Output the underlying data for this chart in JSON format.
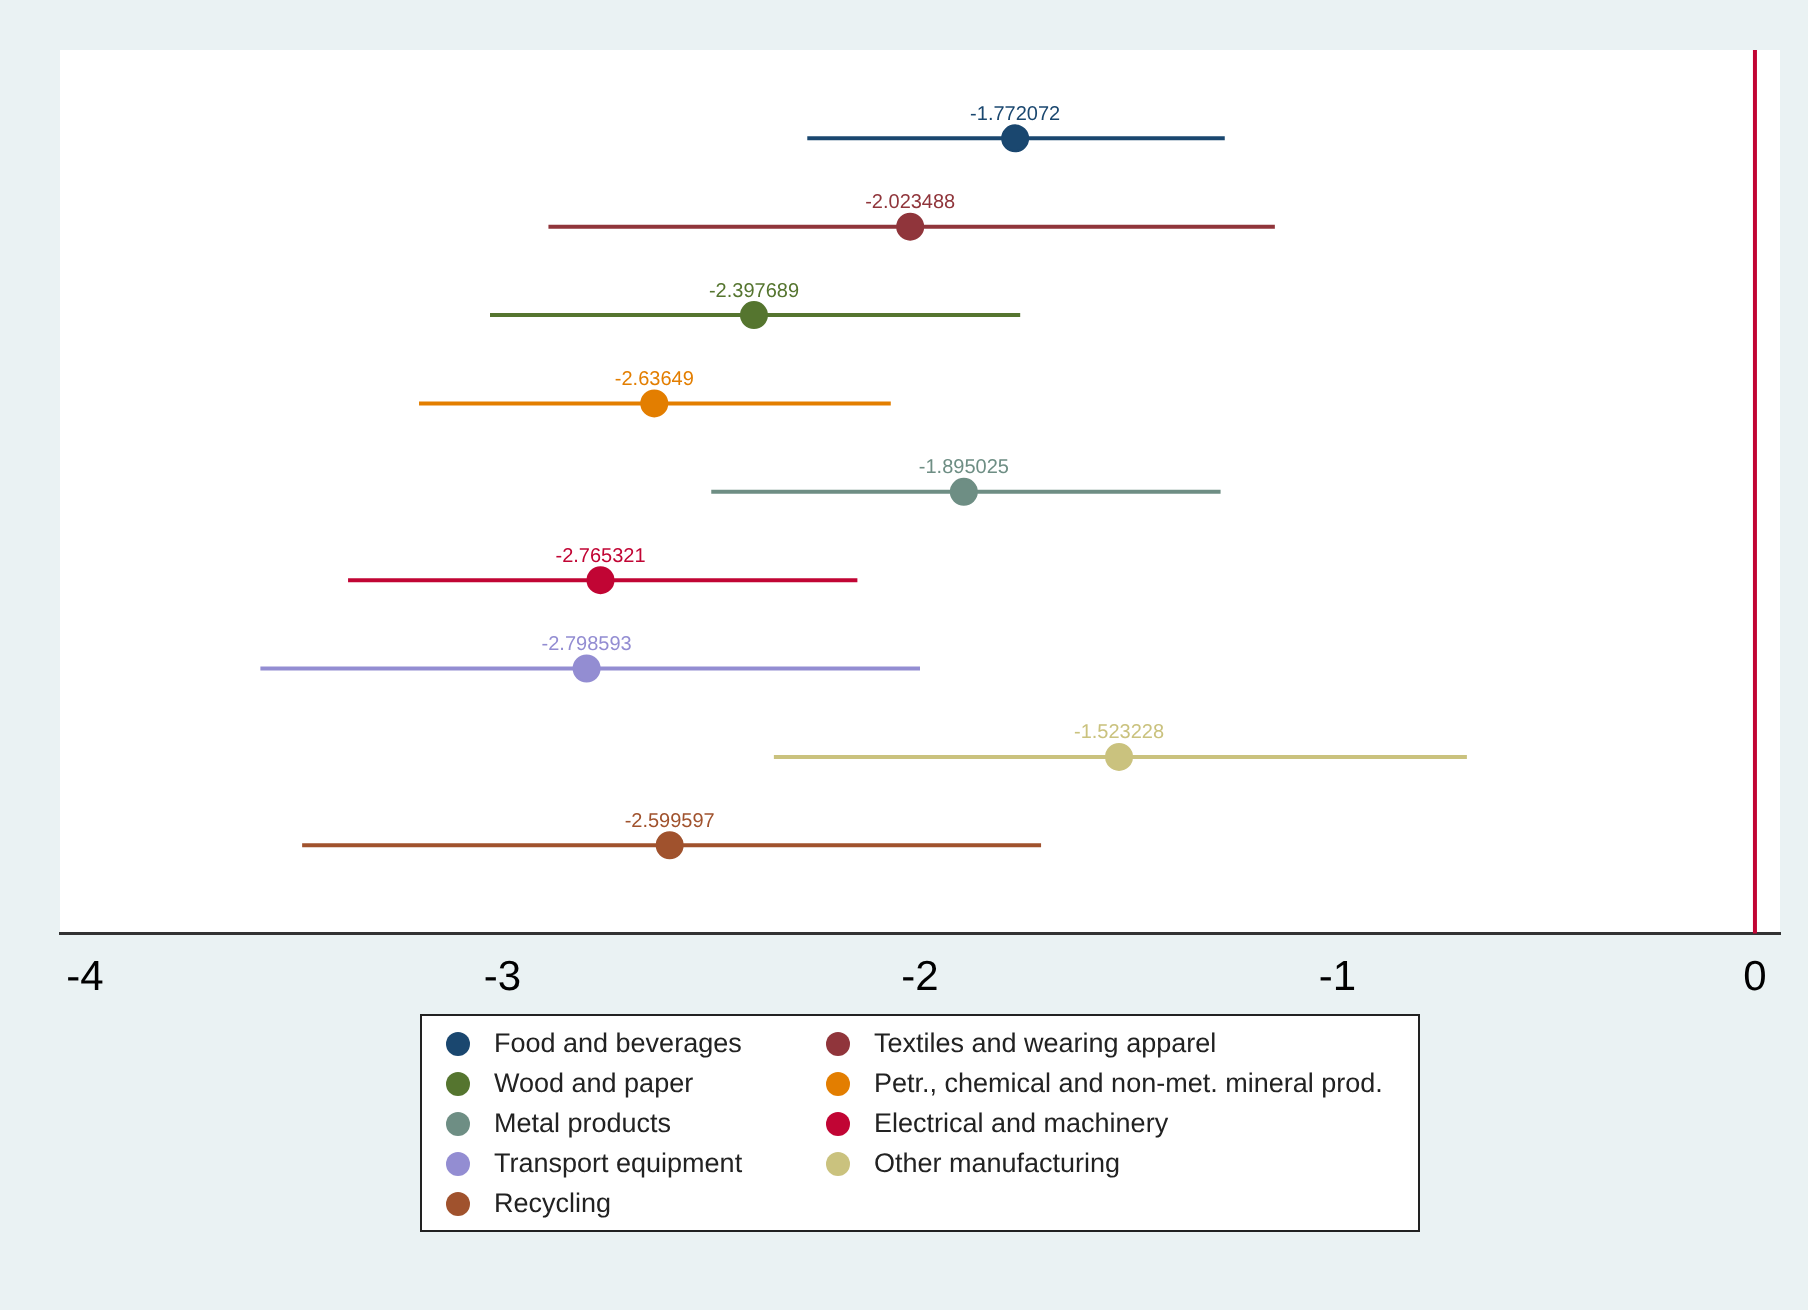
{
  "chart_data": {
    "type": "scatter",
    "orientation": "horizontal",
    "categories": [
      null,
      null,
      null,
      null,
      null,
      null,
      null,
      null,
      null
    ],
    "xlim": [
      -4.06,
      0.06
    ],
    "xticks": [
      -4,
      -3,
      -2,
      -1,
      0
    ],
    "grid": false,
    "legend": "bottom",
    "marker": "circle",
    "data_labels": true,
    "tick_labels": "x",
    "ref_lines": [
      {
        "axis": "x",
        "value": 0,
        "color": "#c10534"
      }
    ],
    "series": [
      {
        "name": "Food and beverages",
        "color": "#1a476f",
        "values": [
          -1.772072,
          null,
          null,
          null,
          null,
          null,
          null,
          null,
          null
        ],
        "errors": [
          [
            -2.27,
            -1.27
          ],
          null,
          null,
          null,
          null,
          null,
          null,
          null,
          null
        ]
      },
      {
        "name": "Textiles and wearing apparel",
        "color": "#90353b",
        "values": [
          null,
          -2.023488,
          null,
          null,
          null,
          null,
          null,
          null,
          null
        ],
        "errors": [
          null,
          [
            -2.89,
            -1.15
          ],
          null,
          null,
          null,
          null,
          null,
          null,
          null
        ]
      },
      {
        "name": "Wood and paper",
        "color": "#55752f",
        "values": [
          null,
          null,
          -2.397689,
          null,
          null,
          null,
          null,
          null,
          null
        ],
        "errors": [
          null,
          null,
          [
            -3.03,
            -1.76
          ],
          null,
          null,
          null,
          null,
          null,
          null
        ]
      },
      {
        "name": "Petr., chemical and non-met. mineral prod.",
        "color": "#e37e00",
        "values": [
          null,
          null,
          null,
          -2.63649,
          null,
          null,
          null,
          null,
          null
        ],
        "errors": [
          null,
          null,
          null,
          [
            -3.2,
            -2.07
          ],
          null,
          null,
          null,
          null,
          null
        ]
      },
      {
        "name": "Metal products",
        "color": "#6e8e84",
        "values": [
          null,
          null,
          null,
          null,
          -1.895025,
          null,
          null,
          null,
          null
        ],
        "errors": [
          null,
          null,
          null,
          null,
          [
            -2.5,
            -1.28
          ],
          null,
          null,
          null,
          null
        ]
      },
      {
        "name": "Electrical and machinery",
        "color": "#c10534",
        "values": [
          null,
          null,
          null,
          null,
          null,
          -2.765321,
          null,
          null,
          null
        ],
        "errors": [
          null,
          null,
          null,
          null,
          null,
          [
            -3.37,
            -2.15
          ],
          null,
          null,
          null
        ]
      },
      {
        "name": "Transport equipment",
        "color": "#938dd2",
        "values": [
          null,
          null,
          null,
          null,
          null,
          null,
          -2.798593,
          null,
          null
        ],
        "errors": [
          null,
          null,
          null,
          null,
          null,
          null,
          [
            -3.58,
            -2.0
          ],
          null,
          null
        ]
      },
      {
        "name": "Other manufacturing",
        "color": "#cac27e",
        "values": [
          null,
          null,
          null,
          null,
          null,
          null,
          null,
          -1.523228,
          null
        ],
        "errors": [
          null,
          null,
          null,
          null,
          null,
          null,
          null,
          [
            -2.35,
            -0.69
          ],
          null
        ]
      },
      {
        "name": "Recycling",
        "color": "#a0522d",
        "values": [
          null,
          null,
          null,
          null,
          null,
          null,
          null,
          null,
          -2.599597
        ],
        "errors": [
          null,
          null,
          null,
          null,
          null,
          null,
          null,
          null,
          [
            -3.48,
            -1.71
          ]
        ]
      }
    ]
  }
}
